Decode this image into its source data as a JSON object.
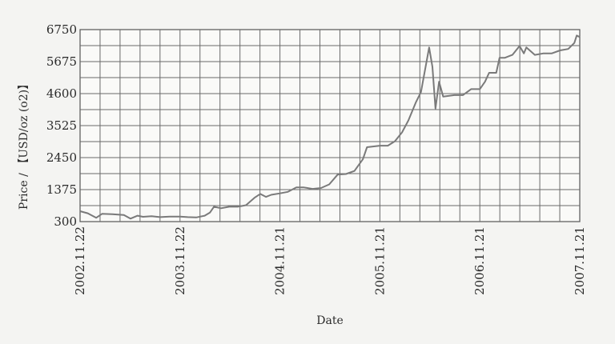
{
  "chart_data": {
    "type": "line",
    "title": "",
    "xlabel": "Date",
    "ylabel": "Price / 【USD/oz (o2)】",
    "y_ticks": [
      300,
      1375,
      2450,
      3525,
      4600,
      5675,
      6750
    ],
    "ylim": [
      300,
      6750
    ],
    "x_ticks": [
      "2002.11.22",
      "2003.11.22",
      "2004.11.21",
      "2005.11.21",
      "2006.11.21",
      "2007.11.21"
    ],
    "xlim": [
      "2002.11.22",
      "2007.11.21"
    ],
    "grid": true,
    "series": [
      {
        "values": [
          [
            "2002.11.22",
            650
          ],
          [
            "2002.12.20",
            580
          ],
          [
            "2003.01.20",
            430
          ],
          [
            "2003.02.10",
            560
          ],
          [
            "2003.03.20",
            550
          ],
          [
            "2003.05.01",
            520
          ],
          [
            "2003.05.25",
            400
          ],
          [
            "2003.06.20",
            500
          ],
          [
            "2003.07.10",
            460
          ],
          [
            "2003.08.10",
            480
          ],
          [
            "2003.09.10",
            450
          ],
          [
            "2003.10.15",
            470
          ],
          [
            "2003.11.22",
            470
          ],
          [
            "2003.12.20",
            450
          ],
          [
            "2004.01.20",
            440
          ],
          [
            "2004.02.20",
            500
          ],
          [
            "2004.03.10",
            600
          ],
          [
            "2004.03.25",
            800
          ],
          [
            "2004.04.20",
            750
          ],
          [
            "2004.05.20",
            800
          ],
          [
            "2004.06.20",
            800
          ],
          [
            "2004.07.20",
            850
          ],
          [
            "2004.08.20",
            1100
          ],
          [
            "2004.09.10",
            1230
          ],
          [
            "2004.10.01",
            1130
          ],
          [
            "2004.10.20",
            1200
          ],
          [
            "2004.11.21",
            1250
          ],
          [
            "2004.12.20",
            1300
          ],
          [
            "2005.01.20",
            1450
          ],
          [
            "2005.02.15",
            1450
          ],
          [
            "2005.03.20",
            1400
          ],
          [
            "2005.04.20",
            1430
          ],
          [
            "2005.05.20",
            1550
          ],
          [
            "2005.06.20",
            1880
          ],
          [
            "2005.07.20",
            1900
          ],
          [
            "2005.08.20",
            2000
          ],
          [
            "2005.09.20",
            2400
          ],
          [
            "2005.10.05",
            2800
          ],
          [
            "2005.11.21",
            2850
          ],
          [
            "2005.12.20",
            2850
          ],
          [
            "2006.01.15",
            3000
          ],
          [
            "2006.02.10",
            3300
          ],
          [
            "2006.03.05",
            3700
          ],
          [
            "2006.04.01",
            4300
          ],
          [
            "2006.04.20",
            4650
          ],
          [
            "2006.05.10",
            5650
          ],
          [
            "2006.05.20",
            6150
          ],
          [
            "2006.06.01",
            5500
          ],
          [
            "2006.06.12",
            4100
          ],
          [
            "2006.06.25",
            5000
          ],
          [
            "2006.07.10",
            4500
          ],
          [
            "2006.08.20",
            4550
          ],
          [
            "2006.09.20",
            4550
          ],
          [
            "2006.10.20",
            4750
          ],
          [
            "2006.11.21",
            4750
          ],
          [
            "2006.12.10",
            5000
          ],
          [
            "2006.12.25",
            5300
          ],
          [
            "2007.01.20",
            5300
          ],
          [
            "2007.02.01",
            5800
          ],
          [
            "2007.02.20",
            5800
          ],
          [
            "2007.03.20",
            5900
          ],
          [
            "2007.04.15",
            6200
          ],
          [
            "2007.05.01",
            5950
          ],
          [
            "2007.05.10",
            6150
          ],
          [
            "2007.06.10",
            5900
          ],
          [
            "2007.07.10",
            5950
          ],
          [
            "2007.08.10",
            5950
          ],
          [
            "2007.09.10",
            6050
          ],
          [
            "2007.10.10",
            6100
          ],
          [
            "2007.11.01",
            6300
          ],
          [
            "2007.11.10",
            6550
          ],
          [
            "2007.11.21",
            6500
          ]
        ]
      }
    ]
  }
}
